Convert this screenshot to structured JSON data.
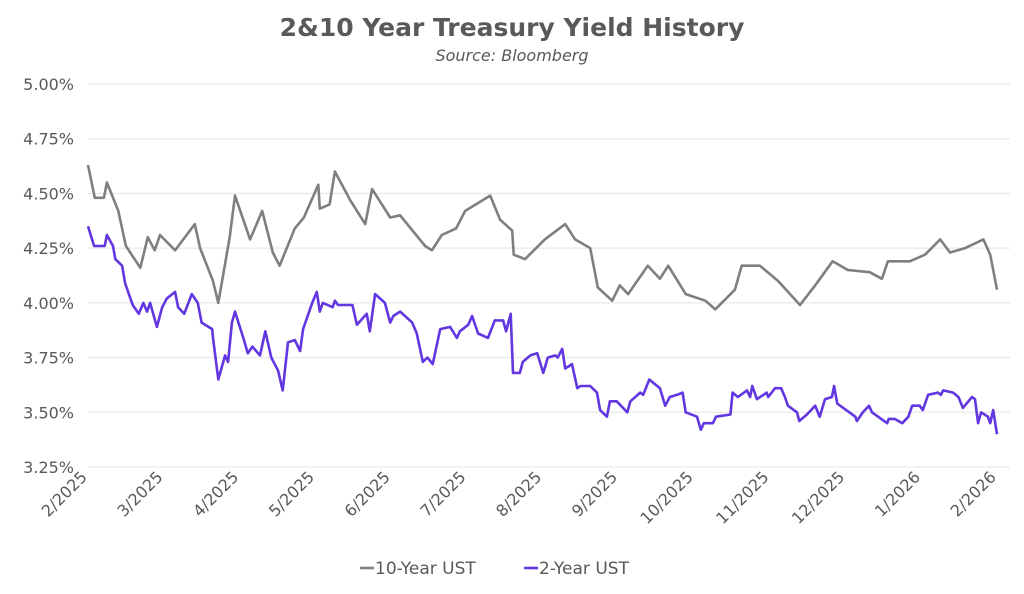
{
  "chart_data": {
    "type": "line",
    "title": "2&10 Year Treasury Yield History",
    "subtitle": "Source: Bloomberg",
    "xlabel": "",
    "ylabel": "",
    "x_unit": "months since 2/2025",
    "xlim": [
      0,
      12
    ],
    "ylim": [
      3.25,
      5.0
    ],
    "yticks": [
      3.25,
      3.5,
      3.75,
      4.0,
      4.25,
      4.5,
      4.75,
      5.0
    ],
    "ytick_labels": [
      "3.25%",
      "3.50%",
      "3.75%",
      "4.00%",
      "4.25%",
      "4.50%",
      "4.75%",
      "5.00%"
    ],
    "xtick_labels": [
      "2/2025",
      "3/2025",
      "4/2025",
      "5/2025",
      "6/2025",
      "7/2025",
      "8/2025",
      "9/2025",
      "10/2025",
      "11/2025",
      "12/2025",
      "1/2026",
      "2/2026"
    ],
    "grid": true,
    "legend_position": "bottom",
    "series": [
      {
        "name": "10-Year UST",
        "color": "#7f7f7f",
        "points": [
          [
            0,
            4.63
          ],
          [
            0.09,
            4.48
          ],
          [
            0.21,
            4.48
          ],
          [
            0.25,
            4.55
          ],
          [
            0.4,
            4.42
          ],
          [
            0.5,
            4.26
          ],
          [
            0.69,
            4.16
          ],
          [
            0.79,
            4.3
          ],
          [
            0.88,
            4.24
          ],
          [
            0.95,
            4.31
          ],
          [
            1.15,
            4.24
          ],
          [
            1.41,
            4.36
          ],
          [
            1.48,
            4.25
          ],
          [
            1.65,
            4.1
          ],
          [
            1.72,
            4.0
          ],
          [
            1.87,
            4.3
          ],
          [
            1.94,
            4.49
          ],
          [
            2.14,
            4.29
          ],
          [
            2.3,
            4.42
          ],
          [
            2.44,
            4.23
          ],
          [
            2.53,
            4.17
          ],
          [
            2.73,
            4.34
          ],
          [
            2.85,
            4.39
          ],
          [
            3.04,
            4.54
          ],
          [
            3.06,
            4.43
          ],
          [
            3.19,
            4.45
          ],
          [
            3.26,
            4.6
          ],
          [
            3.46,
            4.47
          ],
          [
            3.66,
            4.36
          ],
          [
            3.75,
            4.52
          ],
          [
            3.99,
            4.39
          ],
          [
            4.12,
            4.4
          ],
          [
            4.45,
            4.26
          ],
          [
            4.54,
            4.24
          ],
          [
            4.67,
            4.31
          ],
          [
            4.86,
            4.34
          ],
          [
            4.98,
            4.42
          ],
          [
            5.31,
            4.49
          ],
          [
            5.44,
            4.38
          ],
          [
            5.6,
            4.33
          ],
          [
            5.62,
            4.22
          ],
          [
            5.77,
            4.2
          ],
          [
            6.03,
            4.29
          ],
          [
            6.3,
            4.36
          ],
          [
            6.43,
            4.29
          ],
          [
            6.63,
            4.25
          ],
          [
            6.73,
            4.07
          ],
          [
            6.92,
            4.01
          ],
          [
            7.02,
            4.08
          ],
          [
            7.13,
            4.04
          ],
          [
            7.39,
            4.17
          ],
          [
            7.55,
            4.11
          ],
          [
            7.66,
            4.17
          ],
          [
            7.89,
            4.04
          ],
          [
            8.15,
            4.01
          ],
          [
            8.28,
            3.97
          ],
          [
            8.54,
            4.06
          ],
          [
            8.63,
            4.17
          ],
          [
            8.87,
            4.17
          ],
          [
            9.11,
            4.1
          ],
          [
            9.4,
            3.99
          ],
          [
            9.6,
            4.08
          ],
          [
            9.83,
            4.19
          ],
          [
            10.03,
            4.15
          ],
          [
            10.32,
            4.14
          ],
          [
            10.48,
            4.11
          ],
          [
            10.56,
            4.19
          ],
          [
            10.85,
            4.19
          ],
          [
            11.05,
            4.22
          ],
          [
            11.25,
            4.29
          ],
          [
            11.38,
            4.23
          ],
          [
            11.58,
            4.25
          ],
          [
            11.82,
            4.29
          ],
          [
            11.91,
            4.22
          ],
          [
            11.95,
            4.15
          ],
          [
            12.0,
            4.06
          ]
        ]
      },
      {
        "name": "2-Year UST",
        "color": "#6236e0",
        "points": [
          [
            0,
            4.35
          ],
          [
            0.08,
            4.26
          ],
          [
            0.22,
            4.26
          ],
          [
            0.25,
            4.31
          ],
          [
            0.33,
            4.26
          ],
          [
            0.36,
            4.2
          ],
          [
            0.45,
            4.17
          ],
          [
            0.49,
            4.09
          ],
          [
            0.59,
            3.99
          ],
          [
            0.67,
            3.95
          ],
          [
            0.73,
            4.0
          ],
          [
            0.78,
            3.96
          ],
          [
            0.82,
            4.0
          ],
          [
            0.91,
            3.89
          ],
          [
            0.98,
            3.98
          ],
          [
            1.04,
            4.02
          ],
          [
            1.15,
            4.05
          ],
          [
            1.19,
            3.98
          ],
          [
            1.27,
            3.95
          ],
          [
            1.37,
            4.04
          ],
          [
            1.45,
            4.0
          ],
          [
            1.5,
            3.91
          ],
          [
            1.64,
            3.88
          ],
          [
            1.65,
            3.84
          ],
          [
            1.72,
            3.65
          ],
          [
            1.81,
            3.76
          ],
          [
            1.85,
            3.73
          ],
          [
            1.9,
            3.91
          ],
          [
            1.94,
            3.96
          ],
          [
            2.05,
            3.84
          ],
          [
            2.11,
            3.77
          ],
          [
            2.17,
            3.8
          ],
          [
            2.27,
            3.76
          ],
          [
            2.34,
            3.87
          ],
          [
            2.42,
            3.75
          ],
          [
            2.51,
            3.69
          ],
          [
            2.57,
            3.6
          ],
          [
            2.64,
            3.82
          ],
          [
            2.73,
            3.83
          ],
          [
            2.8,
            3.78
          ],
          [
            2.84,
            3.88
          ],
          [
            2.96,
            4.0
          ],
          [
            3.02,
            4.05
          ],
          [
            3.06,
            3.96
          ],
          [
            3.1,
            4.0
          ],
          [
            3.23,
            3.98
          ],
          [
            3.26,
            4.01
          ],
          [
            3.3,
            3.99
          ],
          [
            3.49,
            3.99
          ],
          [
            3.55,
            3.9
          ],
          [
            3.68,
            3.95
          ],
          [
            3.72,
            3.87
          ],
          [
            3.79,
            4.04
          ],
          [
            3.92,
            4.0
          ],
          [
            3.99,
            3.91
          ],
          [
            4.03,
            3.94
          ],
          [
            4.12,
            3.96
          ],
          [
            4.28,
            3.91
          ],
          [
            4.34,
            3.86
          ],
          [
            4.42,
            3.73
          ],
          [
            4.48,
            3.75
          ],
          [
            4.55,
            3.72
          ],
          [
            4.65,
            3.88
          ],
          [
            4.78,
            3.89
          ],
          [
            4.87,
            3.84
          ],
          [
            4.91,
            3.87
          ],
          [
            5.02,
            3.9
          ],
          [
            5.07,
            3.94
          ],
          [
            5.15,
            3.86
          ],
          [
            5.28,
            3.84
          ],
          [
            5.37,
            3.92
          ],
          [
            5.48,
            3.92
          ],
          [
            5.52,
            3.87
          ],
          [
            5.58,
            3.95
          ],
          [
            5.61,
            3.68
          ],
          [
            5.7,
            3.68
          ],
          [
            5.74,
            3.73
          ],
          [
            5.84,
            3.76
          ],
          [
            5.93,
            3.77
          ],
          [
            6.01,
            3.68
          ],
          [
            6.07,
            3.75
          ],
          [
            6.17,
            3.76
          ],
          [
            6.2,
            3.75
          ],
          [
            6.26,
            3.79
          ],
          [
            6.3,
            3.7
          ],
          [
            6.39,
            3.72
          ],
          [
            6.46,
            3.61
          ],
          [
            6.5,
            3.62
          ],
          [
            6.63,
            3.62
          ],
          [
            6.72,
            3.59
          ],
          [
            6.76,
            3.51
          ],
          [
            6.85,
            3.48
          ],
          [
            6.89,
            3.55
          ],
          [
            6.98,
            3.55
          ],
          [
            7.12,
            3.5
          ],
          [
            7.16,
            3.55
          ],
          [
            7.29,
            3.59
          ],
          [
            7.33,
            3.58
          ],
          [
            7.41,
            3.65
          ],
          [
            7.55,
            3.61
          ],
          [
            7.62,
            3.53
          ],
          [
            7.68,
            3.57
          ],
          [
            7.78,
            3.58
          ],
          [
            7.85,
            3.59
          ],
          [
            7.89,
            3.5
          ],
          [
            8.04,
            3.48
          ],
          [
            8.09,
            3.42
          ],
          [
            8.13,
            3.45
          ],
          [
            8.25,
            3.45
          ],
          [
            8.29,
            3.48
          ],
          [
            8.48,
            3.49
          ],
          [
            8.51,
            3.59
          ],
          [
            8.58,
            3.57
          ],
          [
            8.7,
            3.6
          ],
          [
            8.74,
            3.57
          ],
          [
            8.77,
            3.62
          ],
          [
            8.83,
            3.56
          ],
          [
            8.96,
            3.59
          ],
          [
            8.98,
            3.57
          ],
          [
            9.07,
            3.61
          ],
          [
            9.15,
            3.61
          ],
          [
            9.2,
            3.57
          ],
          [
            9.24,
            3.53
          ],
          [
            9.36,
            3.5
          ],
          [
            9.39,
            3.46
          ],
          [
            9.49,
            3.49
          ],
          [
            9.6,
            3.53
          ],
          [
            9.66,
            3.48
          ],
          [
            9.73,
            3.56
          ],
          [
            9.82,
            3.57
          ],
          [
            9.85,
            3.62
          ],
          [
            9.89,
            3.54
          ],
          [
            10.13,
            3.48
          ],
          [
            10.15,
            3.46
          ],
          [
            10.23,
            3.5
          ],
          [
            10.31,
            3.53
          ],
          [
            10.35,
            3.5
          ],
          [
            10.55,
            3.45
          ],
          [
            10.57,
            3.47
          ],
          [
            10.65,
            3.47
          ],
          [
            10.75,
            3.45
          ],
          [
            10.83,
            3.48
          ],
          [
            10.88,
            3.53
          ],
          [
            10.98,
            3.53
          ],
          [
            11.02,
            3.51
          ],
          [
            11.09,
            3.58
          ],
          [
            11.22,
            3.59
          ],
          [
            11.26,
            3.58
          ],
          [
            11.29,
            3.6
          ],
          [
            11.42,
            3.59
          ],
          [
            11.49,
            3.57
          ],
          [
            11.55,
            3.52
          ],
          [
            11.67,
            3.57
          ],
          [
            11.71,
            3.56
          ],
          [
            11.75,
            3.45
          ],
          [
            11.79,
            3.5
          ],
          [
            11.88,
            3.48
          ],
          [
            11.91,
            3.45
          ],
          [
            11.95,
            3.51
          ],
          [
            12.0,
            3.4
          ]
        ]
      }
    ]
  }
}
